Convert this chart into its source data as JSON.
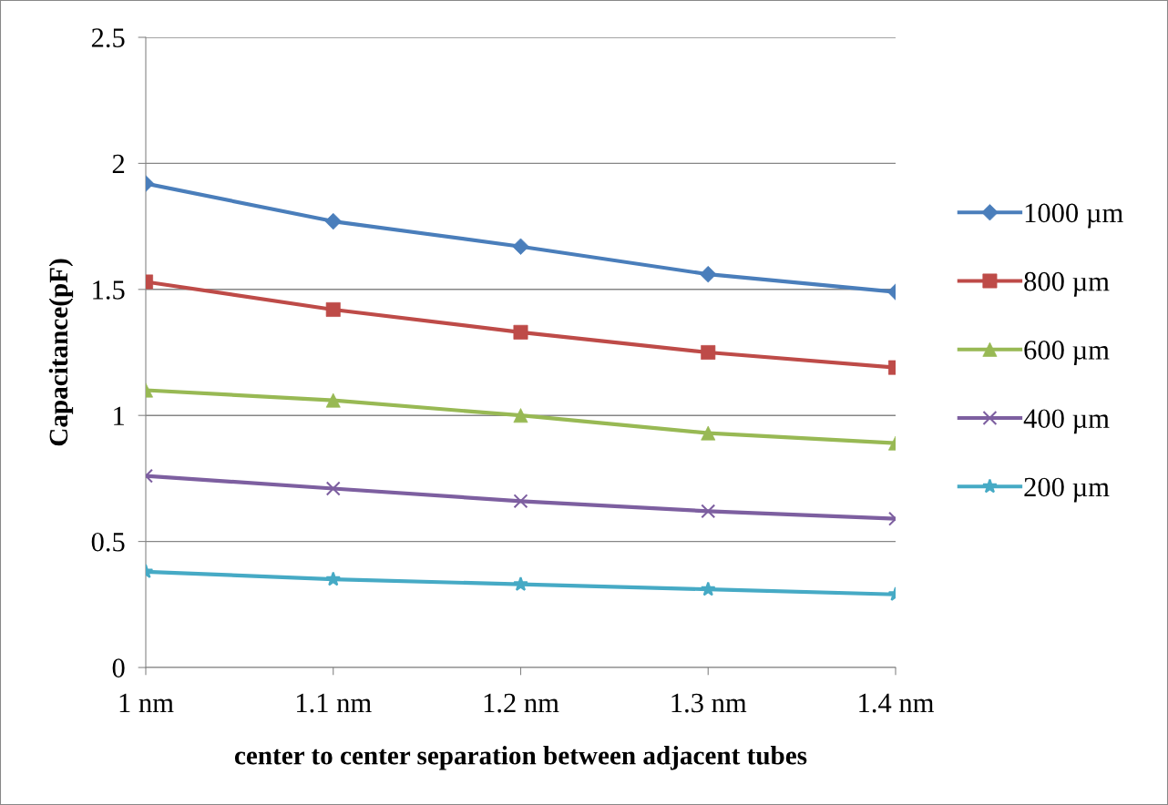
{
  "chart_data": {
    "type": "line",
    "xlabel": "center to center separation between adjacent tubes",
    "ylabel": "Capacitance(pF)",
    "categories": [
      "1 nm",
      "1.1 nm",
      "1.2 nm",
      "1.3 nm",
      "1.4 nm"
    ],
    "series": [
      {
        "name": "1000 µm",
        "color": "#4a7ebb",
        "marker": "diamond",
        "values": [
          1.92,
          1.77,
          1.67,
          1.56,
          1.49
        ]
      },
      {
        "name": "800 µm",
        "color": "#be4b48",
        "marker": "square",
        "values": [
          1.53,
          1.42,
          1.33,
          1.25,
          1.19
        ]
      },
      {
        "name": "600 µm",
        "color": "#98b954",
        "marker": "triangle",
        "values": [
          1.1,
          1.06,
          1.0,
          0.93,
          0.89
        ]
      },
      {
        "name": "400 µm",
        "color": "#7d5fa0",
        "marker": "cross",
        "values": [
          0.76,
          0.71,
          0.66,
          0.62,
          0.59
        ]
      },
      {
        "name": "200 µm",
        "color": "#46aac5",
        "marker": "star",
        "values": [
          0.38,
          0.35,
          0.33,
          0.31,
          0.29
        ]
      }
    ],
    "ylim": [
      0,
      2.5
    ],
    "yticks": [
      0,
      0.5,
      1,
      1.5,
      2,
      2.5
    ],
    "grid": "y",
    "legend": "right",
    "line_style": "solid"
  }
}
